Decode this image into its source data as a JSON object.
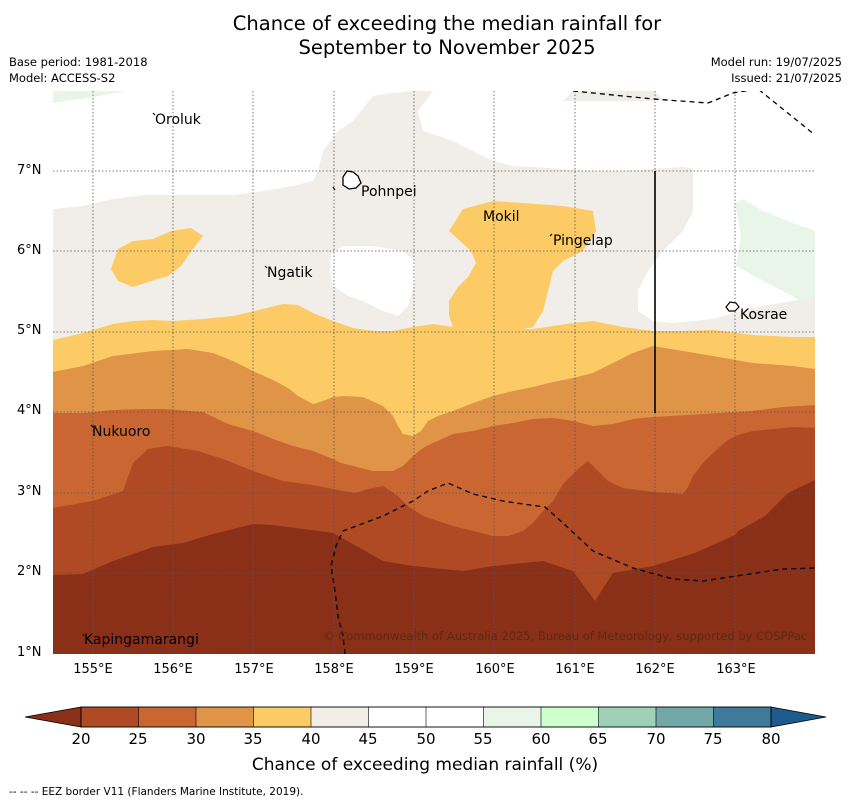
{
  "title_line1": "Chance of exceeding the median rainfall for",
  "title_line2": "September to November 2025",
  "meta_left": [
    "Base period: 1981-2018",
    "Model: ACCESS-S2"
  ],
  "meta_right": [
    "Model run: 19/07/2025",
    "Issued: 21/07/2025"
  ],
  "lat_labels": [
    "7°N",
    "6°N",
    "5°N",
    "4°N",
    "3°N",
    "2°N",
    "1°N"
  ],
  "lon_labels": [
    "155°E",
    "156°E",
    "157°E",
    "158°E",
    "159°E",
    "160°E",
    "161°E",
    "162°E",
    "163°E"
  ],
  "places": {
    "oroluk": "Oroluk",
    "pohnpei": "Pohnpei",
    "mokil": "Mokil",
    "pingelap": "Pingelap",
    "ngatik": "Ngatik",
    "kosrae": "Kosrae",
    "nukuoro": "Nukuoro",
    "kapingamarangi": "Kapingamarangi"
  },
  "copyright": "© Commonwealth of Australia 2025, Bureau of Meteorology, supported by COSPPac",
  "colorbar": {
    "ticks": [
      "20",
      "25",
      "30",
      "35",
      "40",
      "45",
      "50",
      "55",
      "60",
      "65",
      "70",
      "75",
      "80"
    ],
    "colors": {
      "lt20": "#8b3018",
      "c20_25": "#b04a24",
      "c25_30": "#c96632",
      "c30_35": "#e09448",
      "c35_40": "#fdcb66",
      "c40_45": "#f1ede8",
      "c45_50": "#ffffff",
      "c50_55": "#ffffff",
      "c55_60": "#e8f5e8",
      "c60_65": "#ccffcc",
      "c65_70": "#9fd0b8",
      "c70_75": "#72a8a8",
      "c75_80": "#3f7a9a",
      "gt80": "#1e5a8c"
    },
    "title": "Chance of exceeding median rainfall (%)"
  },
  "footnote": "--  --  -- EEZ border V11 (Flanders Marine Institute, 2019)."
}
